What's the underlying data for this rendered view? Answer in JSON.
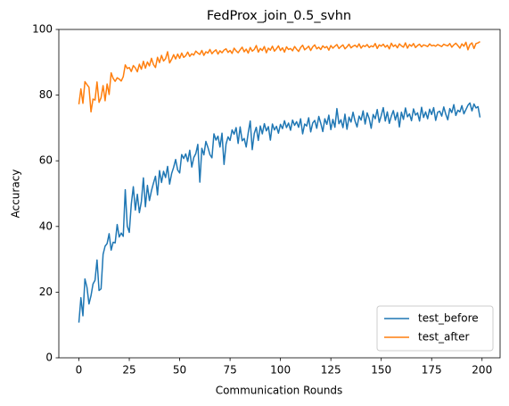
{
  "chart_data": {
    "type": "line",
    "title": "FedProx_join_0.5_svhn",
    "x_label": "Communication Rounds",
    "y_label": "Accuracy",
    "x": [
      0,
      1,
      2,
      3,
      4,
      5,
      6,
      7,
      8,
      9,
      10,
      11,
      12,
      13,
      14,
      15,
      16,
      17,
      18,
      19,
      20,
      21,
      22,
      23,
      24,
      25,
      26,
      27,
      28,
      29,
      30,
      31,
      32,
      33,
      34,
      35,
      36,
      37,
      38,
      39,
      40,
      41,
      42,
      43,
      44,
      45,
      46,
      47,
      48,
      49,
      50,
      51,
      52,
      53,
      54,
      55,
      56,
      57,
      58,
      59,
      60,
      61,
      62,
      63,
      64,
      65,
      66,
      67,
      68,
      69,
      70,
      71,
      72,
      73,
      74,
      75,
      76,
      77,
      78,
      79,
      80,
      81,
      82,
      83,
      84,
      85,
      86,
      87,
      88,
      89,
      90,
      91,
      92,
      93,
      94,
      95,
      96,
      97,
      98,
      99,
      100,
      101,
      102,
      103,
      104,
      105,
      106,
      107,
      108,
      109,
      110,
      111,
      112,
      113,
      114,
      115,
      116,
      117,
      118,
      119,
      120,
      121,
      122,
      123,
      124,
      125,
      126,
      127,
      128,
      129,
      130,
      131,
      132,
      133,
      134,
      135,
      136,
      137,
      138,
      139,
      140,
      141,
      142,
      143,
      144,
      145,
      146,
      147,
      148,
      149,
      150,
      151,
      152,
      153,
      154,
      155,
      156,
      157,
      158,
      159,
      160,
      161,
      162,
      163,
      164,
      165,
      166,
      167,
      168,
      169,
      170,
      171,
      172,
      173,
      174,
      175,
      176,
      177,
      178,
      179,
      180,
      181,
      182,
      183,
      184,
      185,
      186,
      187,
      188,
      189,
      190,
      191,
      192,
      193,
      194,
      195,
      196,
      197,
      198,
      199
    ],
    "series": [
      {
        "name": "test_before",
        "color": "#1f77b4",
        "values": [
          10.7,
          18.3,
          12.8,
          24,
          21.5,
          16.4,
          18.9,
          22.5,
          23.6,
          29.8,
          20.5,
          21,
          31.5,
          34,
          34.8,
          37.8,
          32.8,
          35.2,
          35,
          40.6,
          36.8,
          38,
          37,
          51.2,
          40.1,
          38.2,
          46.8,
          52.1,
          45,
          49.8,
          44.2,
          47.6,
          54.8,
          46,
          52.5,
          47.9,
          50.9,
          53.2,
          55.3,
          49.6,
          57,
          53.4,
          56.8,
          54.9,
          58.3,
          52.9,
          56.1,
          58,
          60.4,
          57.2,
          56.3,
          61.9,
          60.7,
          62.1,
          59.8,
          63.2,
          58.1,
          61,
          62.2,
          65,
          53.5,
          63.8,
          61.8,
          65.9,
          64.1,
          61.9,
          60.9,
          68.2,
          66.3,
          67.5,
          64.2,
          68.4,
          58.9,
          65.1,
          67.3,
          66.2,
          69.4,
          68.1,
          70.1,
          65.3,
          70.3,
          66.1,
          66.8,
          64.2,
          68.5,
          72.1,
          63.4,
          68.3,
          70.2,
          66.2,
          70.6,
          68.2,
          71.3,
          69.1,
          70.4,
          66.3,
          71.2,
          69.4,
          70.5,
          68.4,
          71.1,
          69.8,
          72.2,
          70.1,
          71.5,
          69.3,
          72.4,
          70.8,
          71.9,
          70.2,
          72.8,
          68.2,
          71.2,
          70.6,
          73.1,
          68.8,
          71.5,
          72.3,
          69.9,
          73.5,
          71.4,
          68.9,
          72.8,
          71.1,
          73.9,
          69.5,
          72.6,
          70.2,
          75.9,
          71.3,
          72.5,
          70.1,
          74.2,
          69.6,
          73.3,
          71.8,
          74.8,
          72.1,
          70.3,
          73.6,
          72.4,
          75.2,
          71.2,
          74.6,
          72.9,
          69.9,
          74.1,
          72.8,
          75.6,
          71.7,
          73.8,
          76.2,
          72.1,
          74.9,
          71.4,
          73.6,
          75.3,
          72.4,
          74.7,
          70.3,
          74.8,
          72.6,
          76.1,
          73.4,
          74.3,
          72.2,
          75.8,
          73.9,
          74.6,
          72.1,
          76.3,
          73.2,
          74.9,
          72.8,
          75.7,
          74.1,
          76.2,
          72.3,
          74.8,
          75.1,
          73.6,
          76.4,
          74.2,
          72.5,
          75.9,
          74.7,
          77.1,
          73.8,
          75.4,
          74.9,
          76.8,
          74.3,
          75.6,
          76.9,
          77.6,
          75.2,
          77.3,
          76.1,
          76.5,
          73.2
        ]
      },
      {
        "name": "test_after",
        "color": "#ff7f0e",
        "values": [
          77.2,
          81.9,
          77.5,
          84.1,
          83.2,
          82.4,
          74.9,
          78.8,
          78.5,
          84,
          77.8,
          79.2,
          82.9,
          78.3,
          83.4,
          80.2,
          86.8,
          85.1,
          84.2,
          85.3,
          84.9,
          84.3,
          85.6,
          89.2,
          88.1,
          88.4,
          87.2,
          89,
          88.3,
          87.1,
          89.4,
          87.9,
          90.3,
          88.2,
          90.1,
          88.9,
          91.2,
          89.3,
          88.4,
          91.5,
          89.9,
          92.1,
          90.4,
          91.1,
          93.2,
          89.8,
          90.9,
          92.3,
          91,
          92.5,
          91.2,
          92.8,
          91.5,
          92,
          93.1,
          91.8,
          92.6,
          92.2,
          93.4,
          92.8,
          92.4,
          93.6,
          92.1,
          93.2,
          92.8,
          93.9,
          92.6,
          93.3,
          93.8,
          92.5,
          93.5,
          92.9,
          93.7,
          94.1,
          93,
          93.6,
          92.7,
          94.3,
          93.5,
          92.9,
          93.8,
          94.6,
          93.2,
          94,
          92.8,
          94.5,
          93.4,
          93.9,
          95.1,
          93.1,
          94.2,
          93.6,
          94.8,
          92.9,
          94.3,
          93.7,
          94.9,
          93.4,
          94.1,
          95,
          93.6,
          94.4,
          93.1,
          94.7,
          93.9,
          94.2,
          93.5,
          94.8,
          94,
          93.3,
          94.5,
          95.2,
          93.8,
          94.3,
          94.9,
          93.6,
          94.7,
          95.3,
          94.1,
          94.6,
          93.9,
          95,
          94.4,
          94.8,
          93.7,
          95.1,
          94.3,
          94.9,
          95.4,
          94.2,
          94.8,
          95.3,
          94.1,
          94.7,
          95.5,
          94.4,
          94.9,
          95.2,
          94.6,
          95.6,
          94.3,
          95.1,
          94.8,
          95.4,
          94.5,
          95,
          94.7,
          95.7,
          94.2,
          95.3,
          94.9,
          95.5,
          94.6,
          95.2,
          94.1,
          95.8,
          94.8,
          95.3,
          94.4,
          95.6,
          95,
          94.6,
          95.9,
          94.3,
          95.4,
          94.9,
          95.7,
          94.5,
          95.1,
          95.5,
          94.7,
          95.3,
          95.1,
          94.8,
          95.6,
          95,
          95.2,
          94.9,
          95.4,
          95.1,
          94.8,
          95.5,
          95.2,
          95,
          95.7,
          94.6,
          95.3,
          95.8,
          95.1,
          94.3,
          95.6,
          94.9,
          96.1,
          93.8,
          95.4,
          95.9,
          94.2,
          95.7,
          95.9,
          96.3
        ]
      }
    ],
    "xlim": [
      -9.95,
      208.95
    ],
    "xticks": [
      0,
      25,
      50,
      75,
      100,
      125,
      150,
      175,
      200
    ],
    "ylim": [
      0,
      100
    ],
    "yticks": [
      0,
      20,
      40,
      60,
      80,
      100
    ],
    "legend": "lower right",
    "grid": false
  }
}
